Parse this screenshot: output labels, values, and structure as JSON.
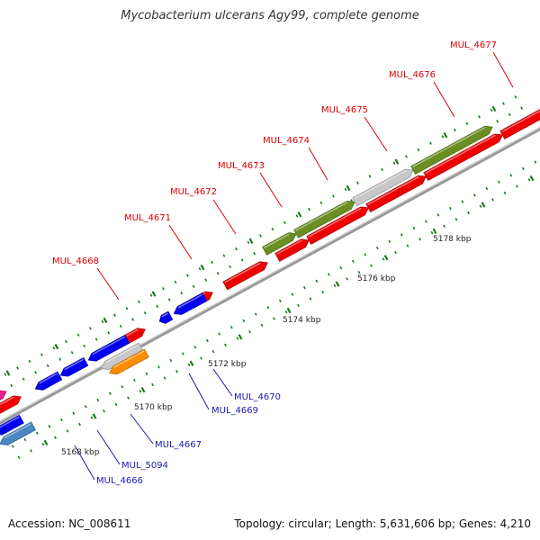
{
  "title": "Mycobacterium ulcerans Agy99, complete genome",
  "footer": {
    "accession": "Accession: NC_008611",
    "stats": "Topology: circular; Length: 5,631,606 bp; Genes: 4,210"
  },
  "colors": {
    "forward_label": "#dd0000",
    "reverse_label": "#1a1ab0",
    "tick": "#1a7a1a",
    "backbone": "#888888",
    "red_gene": "#ee0000",
    "blue_gene": "#0000ee",
    "olive_gene": "#6b8e23",
    "grey_gene": "#c8c8c8",
    "orange_gene": "#ff8c00",
    "magenta_gene": "#ee2288",
    "steel_gene": "#4a86c0"
  },
  "ruler": {
    "labels": [
      "5168 kbp",
      "5170 kbp",
      "5172 kbp",
      "5174 kbp",
      "5176 kbp",
      "5178 kbp"
    ]
  },
  "forward_labels": [
    "MUL_4668",
    "MUL_4671",
    "MUL_4672",
    "MUL_4673",
    "MUL_4674",
    "MUL_4675",
    "MUL_4676",
    "MUL_4677"
  ],
  "reverse_labels": [
    "MUL_4670",
    "MUL_4669",
    "MUL_4667",
    "MUL_5094",
    "MUL_4666"
  ]
}
